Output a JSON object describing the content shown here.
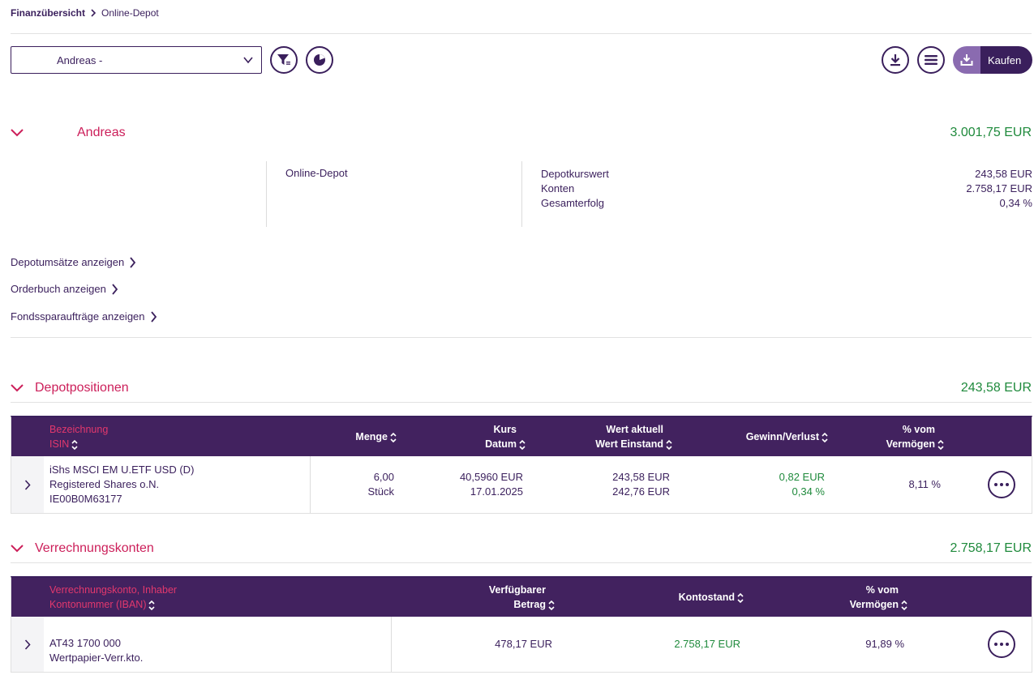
{
  "breadcrumb": {
    "root": "Finanzübersicht",
    "current": "Online-Depot"
  },
  "depot_select": {
    "value": "Andreas -"
  },
  "kaufen_label": "Kaufen",
  "owner": {
    "name": "Andreas",
    "total": "3.001,75 EUR",
    "depot_type": "Online-Depot",
    "summary": [
      {
        "label": "Depotkurswert",
        "value": "243,58 EUR"
      },
      {
        "label": "Konten",
        "value": "2.758,17 EUR"
      },
      {
        "label": "Gesamterfolg",
        "value": "0,34 %"
      }
    ]
  },
  "links": [
    "Depotumsätze anzeigen",
    "Orderbuch anzeigen",
    "Fondssparaufträge anzeigen"
  ],
  "positions": {
    "title": "Depotpositionen",
    "total": "243,58 EUR",
    "headers": {
      "bezeichnung": "Bezeichnung",
      "isin": "ISIN",
      "menge": "Menge",
      "kurs": "Kurs",
      "datum": "Datum",
      "wert_aktuell": "Wert aktuell",
      "wert_einstand": "Wert Einstand",
      "gewinn": "Gewinn/Verlust",
      "vom": "% vom",
      "vermoegen": "Vermögen"
    },
    "row": {
      "name1": "iShs MSCI EM U.ETF USD (D)",
      "name2": "Registered Shares o.N.",
      "isin": "IE00B0M63177",
      "menge": "6,00",
      "einheit": "Stück",
      "kurs": "40,5960 EUR",
      "datum": "17.01.2025",
      "wert_aktuell": "243,58 EUR",
      "wert_einstand": "242,76 EUR",
      "gewinn_eur": "0,82 EUR",
      "gewinn_pct": "0,34 %",
      "anteil": "8,11 %"
    }
  },
  "accounts": {
    "title": "Verrechnungskonten",
    "total": "2.758,17 EUR",
    "headers": {
      "konto": "Verrechnungskonto, Inhaber",
      "iban": "Kontonummer (IBAN)",
      "verf1": "Verfügbarer",
      "verf2": "Betrag",
      "kontostand": "Kontostand",
      "vom": "% vom",
      "vermoegen": "Vermögen"
    },
    "row": {
      "iban": "AT43 1700 000",
      "typ": "Wertpapier-Verr.kto.",
      "verfuegbar": "478,17 EUR",
      "kontostand": "2.758,17 EUR",
      "anteil": "91,89 %"
    }
  }
}
